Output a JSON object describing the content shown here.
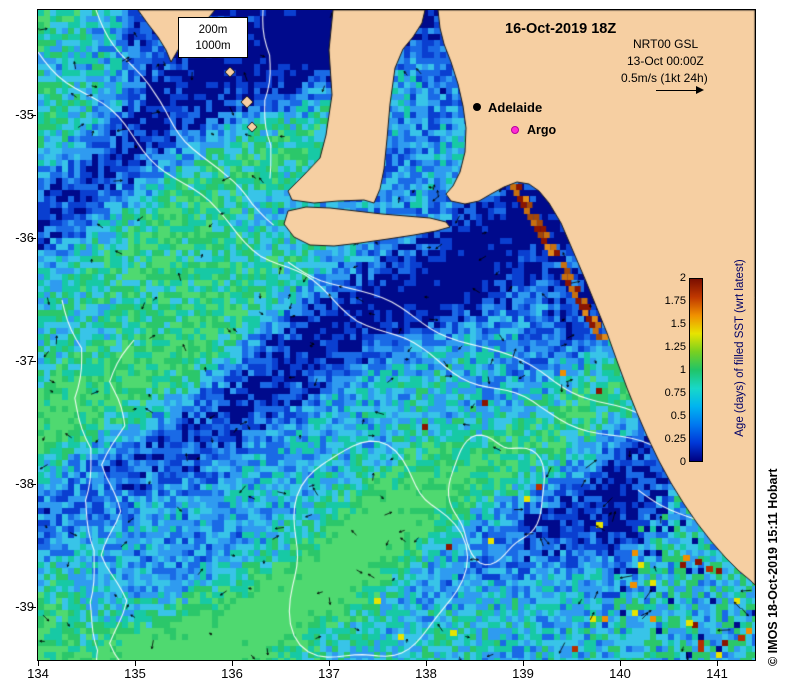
{
  "header": {
    "title": "16-Oct-2019 18Z",
    "product": "NRT00 GSL",
    "reference_time": "13-Oct 00:00Z",
    "vector_scale": "0.5m/s (1kt 24h)"
  },
  "markers": {
    "adelaide_label": "Adelaide",
    "adelaide_color": "#000000",
    "argo_label": "Argo",
    "argo_color": "#ff2ad4"
  },
  "contour_legend": {
    "items": [
      "200m",
      "1000m"
    ]
  },
  "axes": {
    "x_ticks": [
      "134",
      "135",
      "136",
      "137",
      "138",
      "139",
      "140",
      "141"
    ],
    "y_ticks": [
      "-35",
      "-36",
      "-37",
      "-38",
      "-39"
    ]
  },
  "colorbar": {
    "title": "Age (days) of filled SST (wrt latest)",
    "tick_labels_top_to_bottom": [
      "2",
      "1.75",
      "1.5",
      "1.25",
      "1",
      "0.75",
      "0.5",
      "0.25",
      "0"
    ],
    "gradient_bottom_to_top": [
      "#000082",
      "#0038d8",
      "#0078f0",
      "#00b4f0",
      "#18d8c8",
      "#20c468",
      "#78d020",
      "#e8e400",
      "#f09000",
      "#c03800",
      "#7a0e00"
    ]
  },
  "footer": {
    "copyright": "© IMOS 18-Oct-2019 15:11 Hobart"
  },
  "map_colors": {
    "land": "#f6cfa2",
    "coastline": "#1b1b1b",
    "ocean_palette": [
      "#000a8c",
      "#0a3fd0",
      "#1a6ae6",
      "#2f9bf0",
      "#38c4e8",
      "#17c9a5",
      "#2bc76a",
      "#4fd970"
    ],
    "hot_specks": [
      "#e8e400",
      "#f09000",
      "#b83000",
      "#8b1500"
    ],
    "coast_orange": [
      "#c8700e",
      "#e08a1a",
      "#a34708",
      "#8b1500"
    ],
    "contour_color": "#ffffff"
  }
}
